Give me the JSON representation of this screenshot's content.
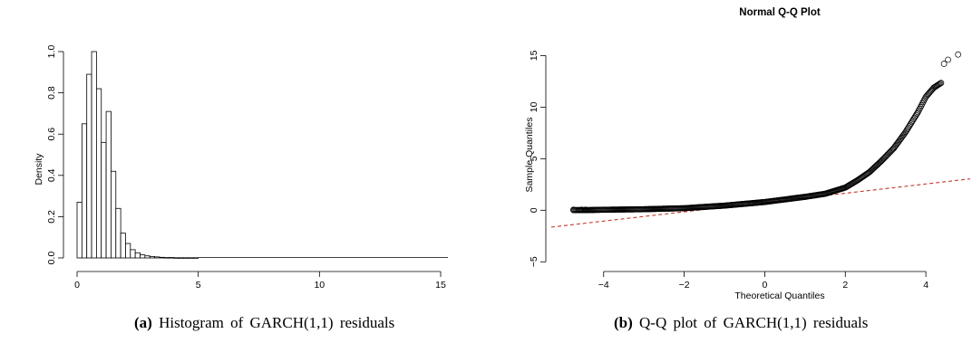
{
  "captions": {
    "a_tag": "(a)",
    "a_text": "Histogram of GARCH(1,1) residuals",
    "b_tag": "(b)",
    "b_text": "Q-Q plot of GARCH(1,1) residuals"
  },
  "chart_data": [
    {
      "type": "bar",
      "subtype": "histogram",
      "title": "",
      "xlabel": "",
      "ylabel": "Density",
      "xlim": [
        0,
        15.3
      ],
      "ylim": [
        0,
        1.0
      ],
      "x_ticks": [
        0,
        5,
        10,
        15
      ],
      "y_ticks": [
        0.0,
        0.2,
        0.4,
        0.6,
        0.8,
        1.0
      ],
      "grid": false,
      "bin_width": 0.2,
      "bin_start": 0,
      "values": [
        0.27,
        0.65,
        0.89,
        1.0,
        0.82,
        0.56,
        0.71,
        0.42,
        0.24,
        0.12,
        0.07,
        0.04,
        0.025,
        0.015,
        0.01,
        0.007,
        0.005,
        0.003,
        0.002,
        0.002,
        0.001,
        0.001,
        0.001,
        0.001,
        0.001
      ]
    },
    {
      "type": "scatter",
      "title": "Normal Q-Q Plot",
      "xlabel": "Theoretical Quantiles",
      "ylabel": "Sample Quantiles",
      "xlim": [
        -5.3,
        5.1
      ],
      "ylim": [
        -5.5,
        16
      ],
      "x_ticks": [
        -4,
        -2,
        0,
        2,
        4
      ],
      "y_ticks": [
        -5,
        0,
        5,
        10,
        15
      ],
      "grid": false,
      "reference_line": {
        "intercept": 0.75,
        "slope": 0.45,
        "color": "#c0392b",
        "style": "dashed"
      },
      "points_curve": [
        [
          -4.75,
          0.02
        ],
        [
          -4.4,
          0.02
        ],
        [
          -4.0,
          0.05
        ],
        [
          -3.0,
          0.1
        ],
        [
          -2.0,
          0.2
        ],
        [
          -1.0,
          0.45
        ],
        [
          0.0,
          0.8
        ],
        [
          1.0,
          1.3
        ],
        [
          1.5,
          1.6
        ],
        [
          2.0,
          2.2
        ],
        [
          2.3,
          2.9
        ],
        [
          2.6,
          3.7
        ],
        [
          2.9,
          4.8
        ],
        [
          3.2,
          6.0
        ],
        [
          3.5,
          7.6
        ],
        [
          3.8,
          9.5
        ],
        [
          4.0,
          11.0
        ],
        [
          4.2,
          11.9
        ],
        [
          4.4,
          12.4
        ]
      ],
      "outliers": [
        [
          -4.75,
          0.05
        ],
        [
          -4.55,
          0.05
        ],
        [
          -4.45,
          0.05
        ],
        [
          4.45,
          14.2
        ],
        [
          4.55,
          14.6
        ],
        [
          4.8,
          15.1
        ]
      ]
    }
  ]
}
